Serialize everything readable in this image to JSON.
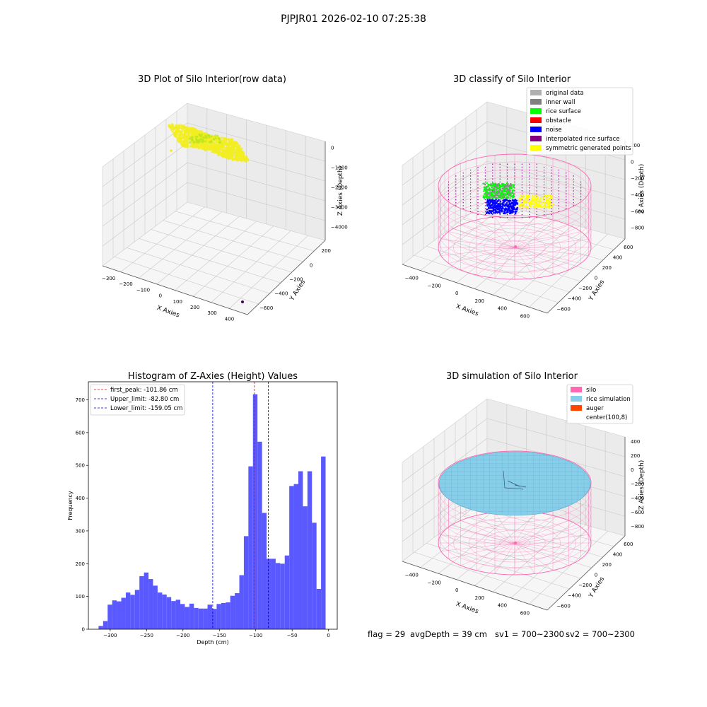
{
  "suptitle": "PJPJR01 2026-02-10 07:25:38",
  "status_line": {
    "flag": "flag = 29",
    "avg_depth": "avgDepth = 39 cm",
    "sv1": "sv1 = 700~2300",
    "sv2": "sv2 = 700~2300"
  },
  "colors": {
    "yellow": "#f2ee1e",
    "green": "#00ff00",
    "gray": "#888888",
    "blue": "#0000ff",
    "silo_pink": "#ff69b4",
    "rice_blue": "#87ceeb",
    "auger": "#ff4500",
    "hist_blue": "#5050ff",
    "peak_red": "#ff0000",
    "limit_blue": "#0000cc"
  },
  "chart_data": [
    {
      "type": "scatter",
      "title": "3D Plot of Silo Interior(row data)",
      "xlabel": "X Axies",
      "ylabel": "Y Axies",
      "zlabel": "Z Axies (Depth)",
      "x_ticks": [
        "−300",
        "−200",
        "−100",
        "0",
        "100",
        "200",
        "300",
        "400"
      ],
      "y_ticks": [
        "200",
        "0",
        "−200",
        "−400",
        "−600"
      ],
      "z_ticks": [
        "0",
        "−1000",
        "−2000",
        "−3000",
        "−4000"
      ],
      "xlim": [
        -330,
        420
      ],
      "ylim": [
        -700,
        300
      ],
      "zlim": [
        -4500,
        200
      ],
      "note_outlier_point": [
        380,
        -650,
        -4500
      ]
    },
    {
      "type": "scatter",
      "title": "3D classify of Silo Interior",
      "xlabel": "X Axies",
      "ylabel": "Y Axies",
      "zlabel": "Z Axies (Depth)",
      "x_ticks": [
        "−400",
        "−200",
        "0",
        "200",
        "400",
        "600"
      ],
      "y_ticks": [
        "600",
        "400",
        "200",
        "0",
        "−200",
        "−400",
        "−600"
      ],
      "z_ticks": [
        "200",
        "0",
        "−200",
        "−400",
        "−600",
        "−800"
      ],
      "legend": [
        {
          "label": "original data",
          "color": "#b0b0b0"
        },
        {
          "label": "inner wall",
          "color": "#808080"
        },
        {
          "label": "rice surface",
          "color": "#00ff00"
        },
        {
          "label": "obstacle",
          "color": "#ff0000"
        },
        {
          "label": "noise",
          "color": "#0000ff"
        },
        {
          "label": "interpolated rice surface",
          "color": "#800080"
        },
        {
          "label": "symmetric generated points",
          "color": "#ffff00"
        }
      ]
    },
    {
      "type": "bar",
      "title": "Histogram of Z-Axies (Height) Values",
      "xlabel": "Depth (cm)",
      "ylabel": "Frequency",
      "xlim": [
        -330,
        12
      ],
      "ylim": [
        0,
        755
      ],
      "x_ticks": [
        -300,
        -250,
        -200,
        -150,
        -100,
        -50,
        0
      ],
      "y_ticks": [
        0,
        100,
        200,
        300,
        400,
        500,
        600,
        700
      ],
      "bin_start": -316,
      "bin_width": 6.24,
      "values": [
        10,
        25,
        75,
        88,
        85,
        96,
        112,
        105,
        120,
        162,
        173,
        153,
        133,
        112,
        106,
        98,
        86,
        90,
        77,
        68,
        78,
        65,
        63,
        63,
        75,
        62,
        77,
        80,
        82,
        102,
        110,
        165,
        284,
        497,
        717,
        572,
        355,
        215,
        215,
        202,
        200,
        225,
        437,
        443,
        482,
        375,
        482,
        325,
        123,
        527
      ],
      "lines": [
        {
          "label": "first_peak: -101.86 cm",
          "x": -101.86,
          "color": "#ff0000"
        },
        {
          "label": "Upper_limit: -82.80 cm",
          "x": -82.8,
          "color": "#0000cc"
        },
        {
          "label": "Lower_limit: -159.05 cm",
          "x": -159.05,
          "color": "#0000cc"
        }
      ]
    },
    {
      "type": "scatter",
      "title": "3D simulation of Silo Interior",
      "xlabel": "X Axies",
      "ylabel": "Y Axies",
      "zlabel": "Z Axies (Depth)",
      "x_ticks": [
        "−400",
        "−200",
        "0",
        "200",
        "400",
        "600"
      ],
      "y_ticks": [
        "600",
        "400",
        "200",
        "0",
        "−200",
        "−400",
        "−600"
      ],
      "z_ticks": [
        "400",
        "200",
        "0",
        "−200",
        "−400",
        "−600",
        "−800"
      ],
      "legend": [
        {
          "label": "silo",
          "color": "#ff69b4"
        },
        {
          "label": "rice simulation",
          "color": "#87ceeb"
        },
        {
          "label": "auger",
          "color": "#ff4500"
        },
        {
          "label": "center(100,8)",
          "color": ""
        }
      ]
    }
  ]
}
